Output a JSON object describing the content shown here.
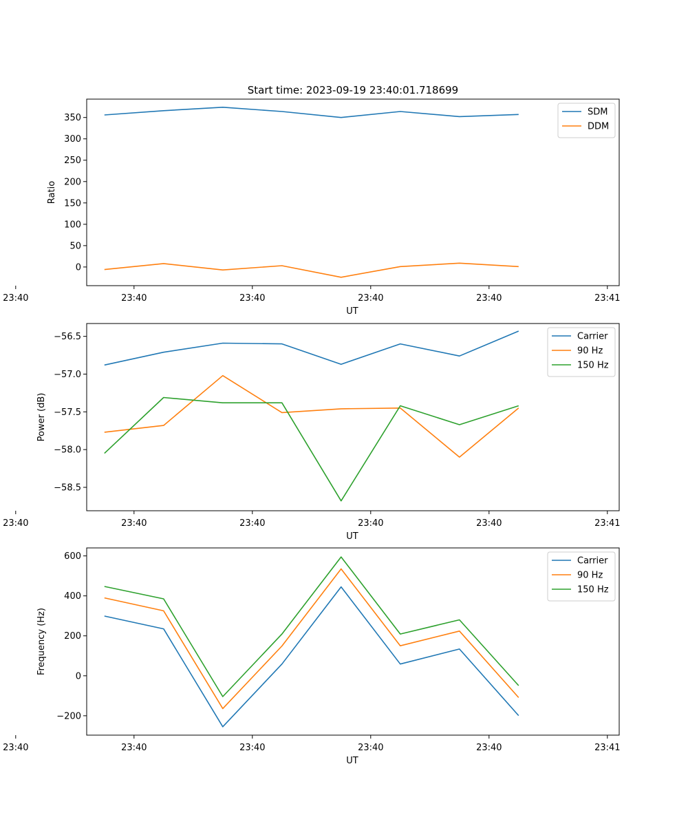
{
  "figure_title": "Start time: 2023-09-19 23:40:01.718699",
  "colors": {
    "blue": "#1f77b4",
    "orange": "#ff7f0e",
    "green": "#2ca02c"
  },
  "chart_data": [
    {
      "type": "line",
      "title": "Start time: 2023-09-19 23:40:01.718699",
      "xlabel": "UT",
      "ylabel": "Ratio",
      "x": [
        0.75,
        1.25,
        1.75,
        2.25,
        2.75,
        3.25,
        3.75,
        4.25
      ],
      "xlim": [
        0.6,
        5.1
      ],
      "xticks": [
        0,
        1,
        2,
        3,
        4,
        5
      ],
      "xtick_labels": [
        "23:40",
        "23:40",
        "23:40",
        "23:40",
        "23:40",
        "23:41"
      ],
      "ylim": [
        -43.7,
        393
      ],
      "yticks": [
        0,
        50,
        100,
        150,
        200,
        250,
        300,
        350
      ],
      "ytick_labels": [
        "0",
        "50",
        "100",
        "150",
        "200",
        "250",
        "300",
        "350"
      ],
      "legend_position": "top-right",
      "series": [
        {
          "name": "SDM",
          "color": "#1f77b4",
          "values": [
            356,
            366,
            374,
            364,
            350,
            364,
            352,
            357
          ]
        },
        {
          "name": "DDM",
          "color": "#ff7f0e",
          "values": [
            -6,
            8,
            -7,
            3,
            -24,
            1,
            9,
            1
          ]
        }
      ]
    },
    {
      "type": "line",
      "title": "",
      "xlabel": "UT",
      "ylabel": "Power (dB)",
      "x": [
        0.75,
        1.25,
        1.75,
        2.25,
        2.75,
        3.25,
        3.75,
        4.25
      ],
      "xlim": [
        0.6,
        5.1
      ],
      "xticks": [
        0,
        1,
        2,
        3,
        4,
        5
      ],
      "xtick_labels": [
        "23:40",
        "23:40",
        "23:40",
        "23:40",
        "23:40",
        "23:41"
      ],
      "ylim": [
        -58.81,
        -56.33
      ],
      "yticks": [
        -58.5,
        -58.0,
        -57.5,
        -57.0,
        -56.5
      ],
      "ytick_labels": [
        "−58.5",
        "−58.0",
        "−57.5",
        "−57.0",
        "−56.5"
      ],
      "legend_position": "top-right",
      "series": [
        {
          "name": "Carrier",
          "color": "#1f77b4",
          "values": [
            -56.88,
            -56.71,
            -56.59,
            -56.6,
            -56.87,
            -56.6,
            -56.76,
            -56.43
          ]
        },
        {
          "name": "90 Hz",
          "color": "#ff7f0e",
          "values": [
            -57.77,
            -57.68,
            -57.02,
            -57.51,
            -57.46,
            -57.45,
            -58.1,
            -57.45
          ]
        },
        {
          "name": "150 Hz",
          "color": "#2ca02c",
          "values": [
            -58.05,
            -57.31,
            -57.38,
            -57.38,
            -58.68,
            -57.42,
            -57.67,
            -57.42
          ]
        }
      ]
    },
    {
      "type": "line",
      "title": "",
      "xlabel": "UT",
      "ylabel": "Frequency (Hz)",
      "x": [
        0.75,
        1.25,
        1.75,
        2.25,
        2.75,
        3.25,
        3.75,
        4.25
      ],
      "xlim": [
        0.6,
        5.1
      ],
      "xticks": [
        0,
        1,
        2,
        3,
        4,
        5
      ],
      "xtick_labels": [
        "23:40",
        "23:40",
        "23:40",
        "23:40",
        "23:40",
        "23:41"
      ],
      "ylim": [
        -297,
        640
      ],
      "yticks": [
        -200,
        0,
        200,
        400,
        600
      ],
      "ytick_labels": [
        "−200",
        "0",
        "200",
        "400",
        "600"
      ],
      "legend_position": "top-right",
      "series": [
        {
          "name": "Carrier",
          "color": "#1f77b4",
          "values": [
            299,
            235,
            -255,
            59,
            445,
            59,
            134,
            -199
          ]
        },
        {
          "name": "90 Hz",
          "color": "#ff7f0e",
          "values": [
            390,
            325,
            -164,
            149,
            535,
            150,
            224,
            -109
          ]
        },
        {
          "name": "150 Hz",
          "color": "#2ca02c",
          "values": [
            447,
            385,
            -104,
            209,
            595,
            209,
            280,
            -49
          ]
        }
      ]
    }
  ]
}
